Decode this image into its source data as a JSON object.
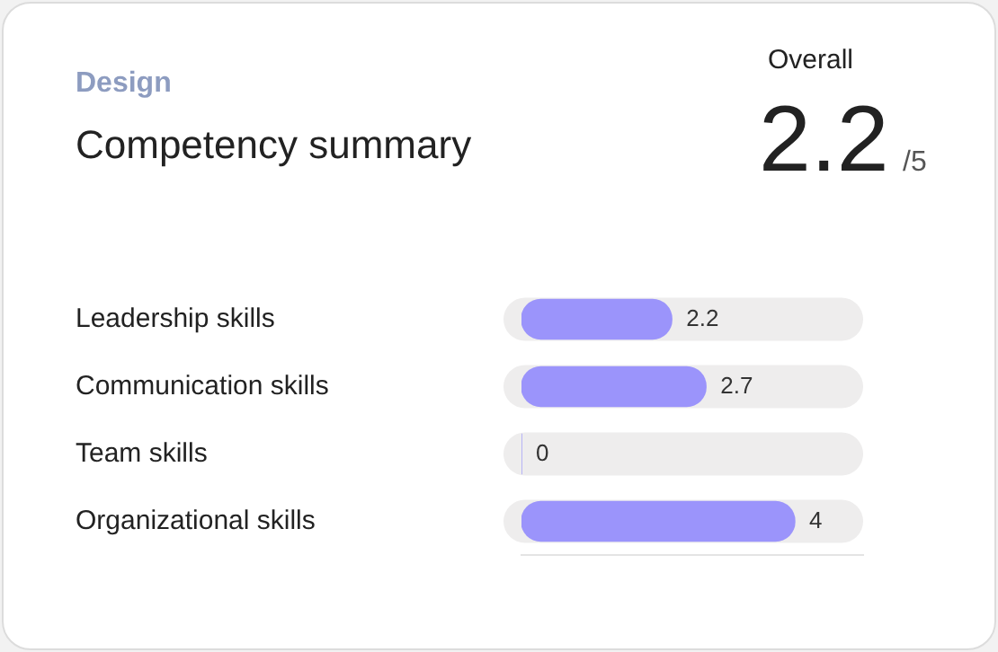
{
  "chart_data": {
    "type": "bar",
    "orientation": "horizontal",
    "subtitle": "Design",
    "title": "Competency summary",
    "annotations": [
      "Overall",
      "2.2",
      "/5"
    ],
    "categories": [
      "Leadership skills",
      "Communication skills",
      "Team skills",
      "Organizational skills"
    ],
    "values": [
      2.2,
      2.7,
      0,
      4
    ],
    "color": "#9b94fb",
    "xlim": [
      0,
      5
    ],
    "data_labels": true,
    "grid": false,
    "legend": false,
    "tick_labels": "y"
  }
}
